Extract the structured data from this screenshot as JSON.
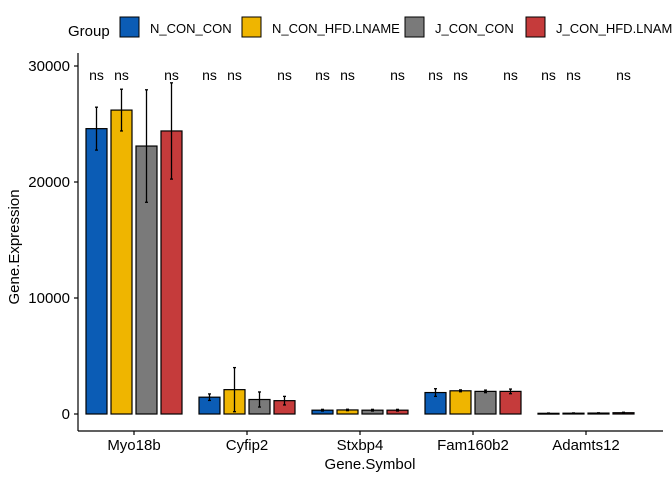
{
  "chart_data": {
    "type": "bar",
    "xlabel": "Gene.Symbol",
    "ylabel": "Gene.Expression",
    "ylim": [
      0,
      30000
    ],
    "yticks": [
      0,
      10000,
      20000,
      30000
    ],
    "grid": false,
    "legend": {
      "title": "Group",
      "position": "top"
    },
    "categories": [
      "Myo18b",
      "Cyfip2",
      "Stxbp4",
      "Fam160b2",
      "Adamts12"
    ],
    "series": [
      {
        "name": "N_CON_CON",
        "color": "#0b5cb5",
        "values": [
          24600,
          1450,
          330,
          1850,
          60
        ],
        "errors": [
          1850,
          280,
          70,
          330,
          25
        ]
      },
      {
        "name": "N_CON_HFD.LNAME",
        "color": "#efb500",
        "values": [
          26200,
          2100,
          350,
          2000,
          70
        ],
        "errors": [
          1800,
          1900,
          60,
          80,
          25
        ]
      },
      {
        "name": "J_CON_CON",
        "color": "#7a7a7a",
        "values": [
          23100,
          1250,
          330,
          1950,
          80
        ],
        "errors": [
          4850,
          650,
          70,
          110,
          25
        ]
      },
      {
        "name": "J_CON_HFD.LNAME",
        "color": "#c53b3b",
        "values": [
          24400,
          1150,
          330,
          1950,
          110
        ],
        "errors": [
          4150,
          370,
          70,
          200,
          40
        ]
      }
    ],
    "annotations": [
      {
        "category": "Myo18b",
        "series": "N_CON_CON",
        "text": "ns"
      },
      {
        "category": "Myo18b",
        "series": "N_CON_HFD.LNAME",
        "text": "ns"
      },
      {
        "category": "Myo18b",
        "series": "J_CON_HFD.LNAME",
        "text": "ns"
      },
      {
        "category": "Cyfip2",
        "series": "N_CON_CON",
        "text": "ns"
      },
      {
        "category": "Cyfip2",
        "series": "N_CON_HFD.LNAME",
        "text": "ns"
      },
      {
        "category": "Cyfip2",
        "series": "J_CON_HFD.LNAME",
        "text": "ns"
      },
      {
        "category": "Stxbp4",
        "series": "N_CON_CON",
        "text": "ns"
      },
      {
        "category": "Stxbp4",
        "series": "N_CON_HFD.LNAME",
        "text": "ns"
      },
      {
        "category": "Stxbp4",
        "series": "J_CON_HFD.LNAME",
        "text": "ns"
      },
      {
        "category": "Fam160b2",
        "series": "N_CON_CON",
        "text": "ns"
      },
      {
        "category": "Fam160b2",
        "series": "N_CON_HFD.LNAME",
        "text": "ns"
      },
      {
        "category": "Fam160b2",
        "series": "J_CON_HFD.LNAME",
        "text": "ns"
      },
      {
        "category": "Adamts12",
        "series": "N_CON_CON",
        "text": "ns"
      },
      {
        "category": "Adamts12",
        "series": "N_CON_HFD.LNAME",
        "text": "ns"
      },
      {
        "category": "Adamts12",
        "series": "J_CON_HFD.LNAME",
        "text": "ns"
      }
    ]
  }
}
